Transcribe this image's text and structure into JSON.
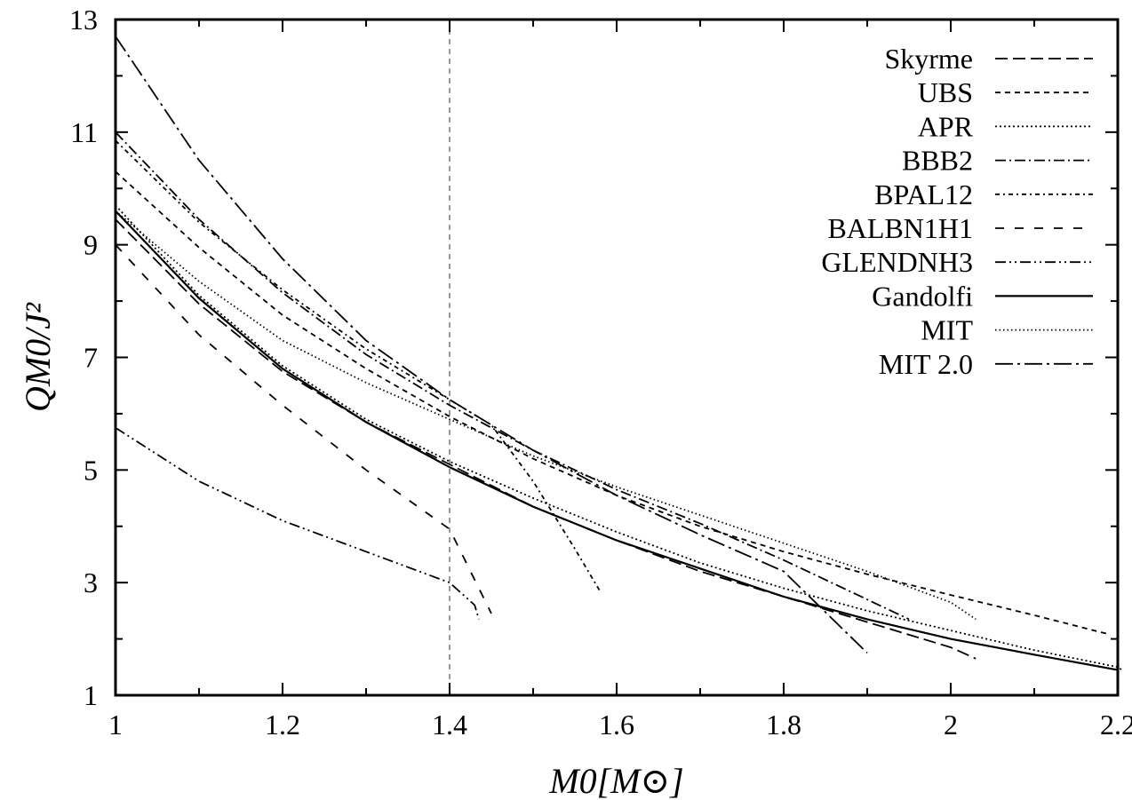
{
  "chart_data": {
    "type": "line",
    "xlabel": "M0[M⊙]",
    "ylabel": "QM0/J²",
    "xlim": [
      1,
      2.2
    ],
    "ylim": [
      1,
      13
    ],
    "xticks": [
      1,
      1.2,
      1.4,
      1.6,
      1.8,
      2,
      2.2
    ],
    "yticks": [
      1,
      3,
      5,
      7,
      9,
      11,
      13
    ],
    "xtick_labels": [
      "1",
      "1.2",
      "1.4",
      "1.6",
      "1.8",
      "2",
      "2.2"
    ],
    "ytick_labels": [
      "1",
      "3",
      "5",
      "7",
      "9",
      "11",
      "13"
    ],
    "reference_line_x": 1.4,
    "grid": false,
    "legend_position": "top-right",
    "series": [
      {
        "name": "Skyrme",
        "dash": "14,6",
        "x": [
          1.0,
          1.1,
          1.2,
          1.3,
          1.4,
          1.5,
          1.6,
          1.7,
          1.8,
          1.9,
          2.0,
          2.03
        ],
        "y": [
          9.45,
          7.95,
          6.75,
          5.85,
          5.1,
          4.35,
          3.75,
          3.2,
          2.75,
          2.3,
          1.85,
          1.65
        ]
      },
      {
        "name": "UBS",
        "dash": "6,5",
        "x": [
          1.0,
          1.1,
          1.2,
          1.3,
          1.4,
          1.5,
          1.6,
          1.7,
          1.8,
          1.9,
          2.0,
          2.1,
          2.19
        ],
        "y": [
          10.3,
          8.95,
          7.75,
          6.8,
          5.95,
          5.2,
          4.55,
          4.0,
          3.55,
          3.15,
          2.78,
          2.42,
          2.08
        ]
      },
      {
        "name": "APR",
        "dash": "2,3",
        "x": [
          1.0,
          1.1,
          1.2,
          1.3,
          1.4,
          1.5,
          1.6,
          1.7,
          1.8,
          1.9,
          2.0,
          2.1,
          2.2,
          2.205
        ],
        "y": [
          9.7,
          8.1,
          6.85,
          5.9,
          5.15,
          4.5,
          3.9,
          3.35,
          2.9,
          2.5,
          2.15,
          1.8,
          1.5,
          1.45
        ]
      },
      {
        "name": "BBB2",
        "dash": "12,4,2,4",
        "x": [
          1.0,
          1.1,
          1.2,
          1.3,
          1.4,
          1.5,
          1.6,
          1.7,
          1.8,
          1.9,
          1.95
        ],
        "y": [
          11.0,
          9.45,
          8.15,
          7.05,
          6.15,
          5.35,
          4.65,
          4.05,
          3.4,
          2.7,
          2.35
        ]
      },
      {
        "name": "BPAL12",
        "dash": "5,4,2,4",
        "x": [
          1.0,
          1.1,
          1.2,
          1.3,
          1.4,
          1.45,
          1.5,
          1.55,
          1.58
        ],
        "y": [
          10.85,
          9.4,
          8.2,
          7.15,
          6.25,
          5.8,
          4.8,
          3.6,
          2.85
        ]
      },
      {
        "name": "BALBN1H1",
        "dash": "10,12",
        "x": [
          1.0,
          1.1,
          1.2,
          1.3,
          1.4,
          1.45
        ],
        "y": [
          9.0,
          7.4,
          6.15,
          5.0,
          3.95,
          2.45
        ]
      },
      {
        "name": "GLENDNH3",
        "dash": "12,4,2,4,2,4",
        "x": [
          1.0,
          1.1,
          1.2,
          1.3,
          1.4,
          1.43,
          1.435
        ],
        "y": [
          5.75,
          4.8,
          4.1,
          3.55,
          3.0,
          2.6,
          2.35
        ]
      },
      {
        "name": "Gandolfi",
        "dash": "",
        "x": [
          1.0,
          1.1,
          1.2,
          1.3,
          1.4,
          1.5,
          1.6,
          1.7,
          1.8,
          1.9,
          2.0,
          2.1,
          2.2,
          2.2
        ],
        "y": [
          9.6,
          8.05,
          6.8,
          5.85,
          5.05,
          4.35,
          3.75,
          3.25,
          2.75,
          2.35,
          2.0,
          1.72,
          1.45,
          1.3
        ]
      },
      {
        "name": "MIT",
        "dash": "1.5,3",
        "x": [
          1.0,
          1.1,
          1.2,
          1.3,
          1.4,
          1.5,
          1.6,
          1.7,
          1.8,
          1.9,
          2.0,
          2.03
        ],
        "y": [
          9.6,
          8.35,
          7.3,
          6.55,
          5.9,
          5.25,
          4.7,
          4.2,
          3.7,
          3.2,
          2.65,
          2.35
        ]
      },
      {
        "name": "MIT 2.0",
        "dash": "20,5,3,5",
        "x": [
          1.0,
          1.1,
          1.2,
          1.3,
          1.4,
          1.5,
          1.6,
          1.7,
          1.8,
          1.9
        ],
        "y": [
          12.7,
          10.5,
          8.75,
          7.3,
          6.25,
          5.35,
          4.55,
          3.85,
          3.2,
          1.75
        ]
      }
    ]
  }
}
